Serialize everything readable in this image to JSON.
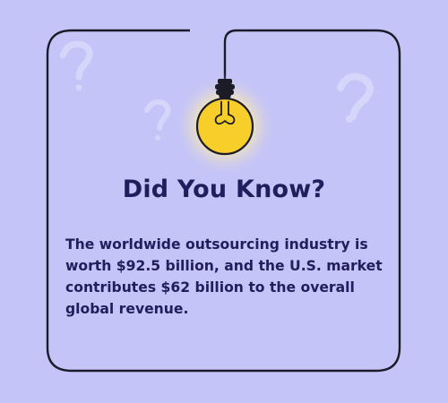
{
  "card": {
    "title": "Did You Know?",
    "body": "The worldwide outsourcing industry is worth $92.5 billion, and the U.S. market contributes $62 billion to the overall global revenue."
  },
  "colors": {
    "background": "#c4c4f8",
    "frame": "#1c1c28",
    "text": "#1e1f5c",
    "bulb": "#f8cf2a",
    "bulb_glow": "#fff2b8",
    "question_marks": "#dadafb"
  },
  "icons": [
    "light-bulb-icon",
    "question-mark-icon"
  ]
}
